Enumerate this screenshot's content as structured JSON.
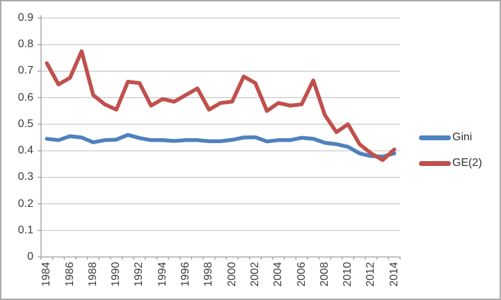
{
  "chart_data": {
    "type": "line",
    "x": [
      1984,
      1985,
      1986,
      1987,
      1988,
      1989,
      1990,
      1991,
      1992,
      1993,
      1994,
      1995,
      1996,
      1997,
      1998,
      1999,
      2000,
      2001,
      2002,
      2003,
      2004,
      2005,
      2006,
      2007,
      2008,
      2009,
      2010,
      2011,
      2012,
      2013,
      2014
    ],
    "series": [
      {
        "name": "Gini",
        "color": "#4F81BD",
        "values": [
          0.445,
          0.44,
          0.455,
          0.45,
          0.432,
          0.44,
          0.442,
          0.46,
          0.448,
          0.44,
          0.44,
          0.437,
          0.44,
          0.44,
          0.436,
          0.436,
          0.441,
          0.45,
          0.451,
          0.435,
          0.44,
          0.44,
          0.449,
          0.445,
          0.43,
          0.425,
          0.415,
          0.39,
          0.38,
          0.378,
          0.39
        ]
      },
      {
        "name": "GE(2)",
        "color": "#C0504D",
        "values": [
          0.73,
          0.65,
          0.675,
          0.775,
          0.61,
          0.575,
          0.555,
          0.66,
          0.655,
          0.57,
          0.595,
          0.585,
          0.61,
          0.635,
          0.555,
          0.58,
          0.585,
          0.68,
          0.655,
          0.55,
          0.58,
          0.57,
          0.575,
          0.665,
          0.535,
          0.47,
          0.5,
          0.425,
          0.39,
          0.365,
          0.405
        ]
      }
    ],
    "title": "",
    "xlabel": "",
    "ylabel": "",
    "ylim": [
      0,
      0.9
    ],
    "y_tick_step": 0.1,
    "y_tick_labels": [
      "0.9",
      "0.8",
      "0.7",
      "0.6",
      "0.5",
      "0.4",
      "0.3",
      "0.2",
      "0.1",
      "0"
    ],
    "x_tick_labels": [
      "1984",
      "1986",
      "1988",
      "1990",
      "1992",
      "1994",
      "1996",
      "1998",
      "2000",
      "2002",
      "2004",
      "2006",
      "2008",
      "2010",
      "2012",
      "2014"
    ],
    "x_label_every": 2,
    "grid": true,
    "legend_position": "right",
    "colors": {
      "gridline": "#bdbdbd",
      "axis": "#9b9b9b",
      "tick": "#9b9b9b",
      "axis_text": "#3c3c3c",
      "background": "#ffffff",
      "border": "#a9a9a9"
    }
  }
}
